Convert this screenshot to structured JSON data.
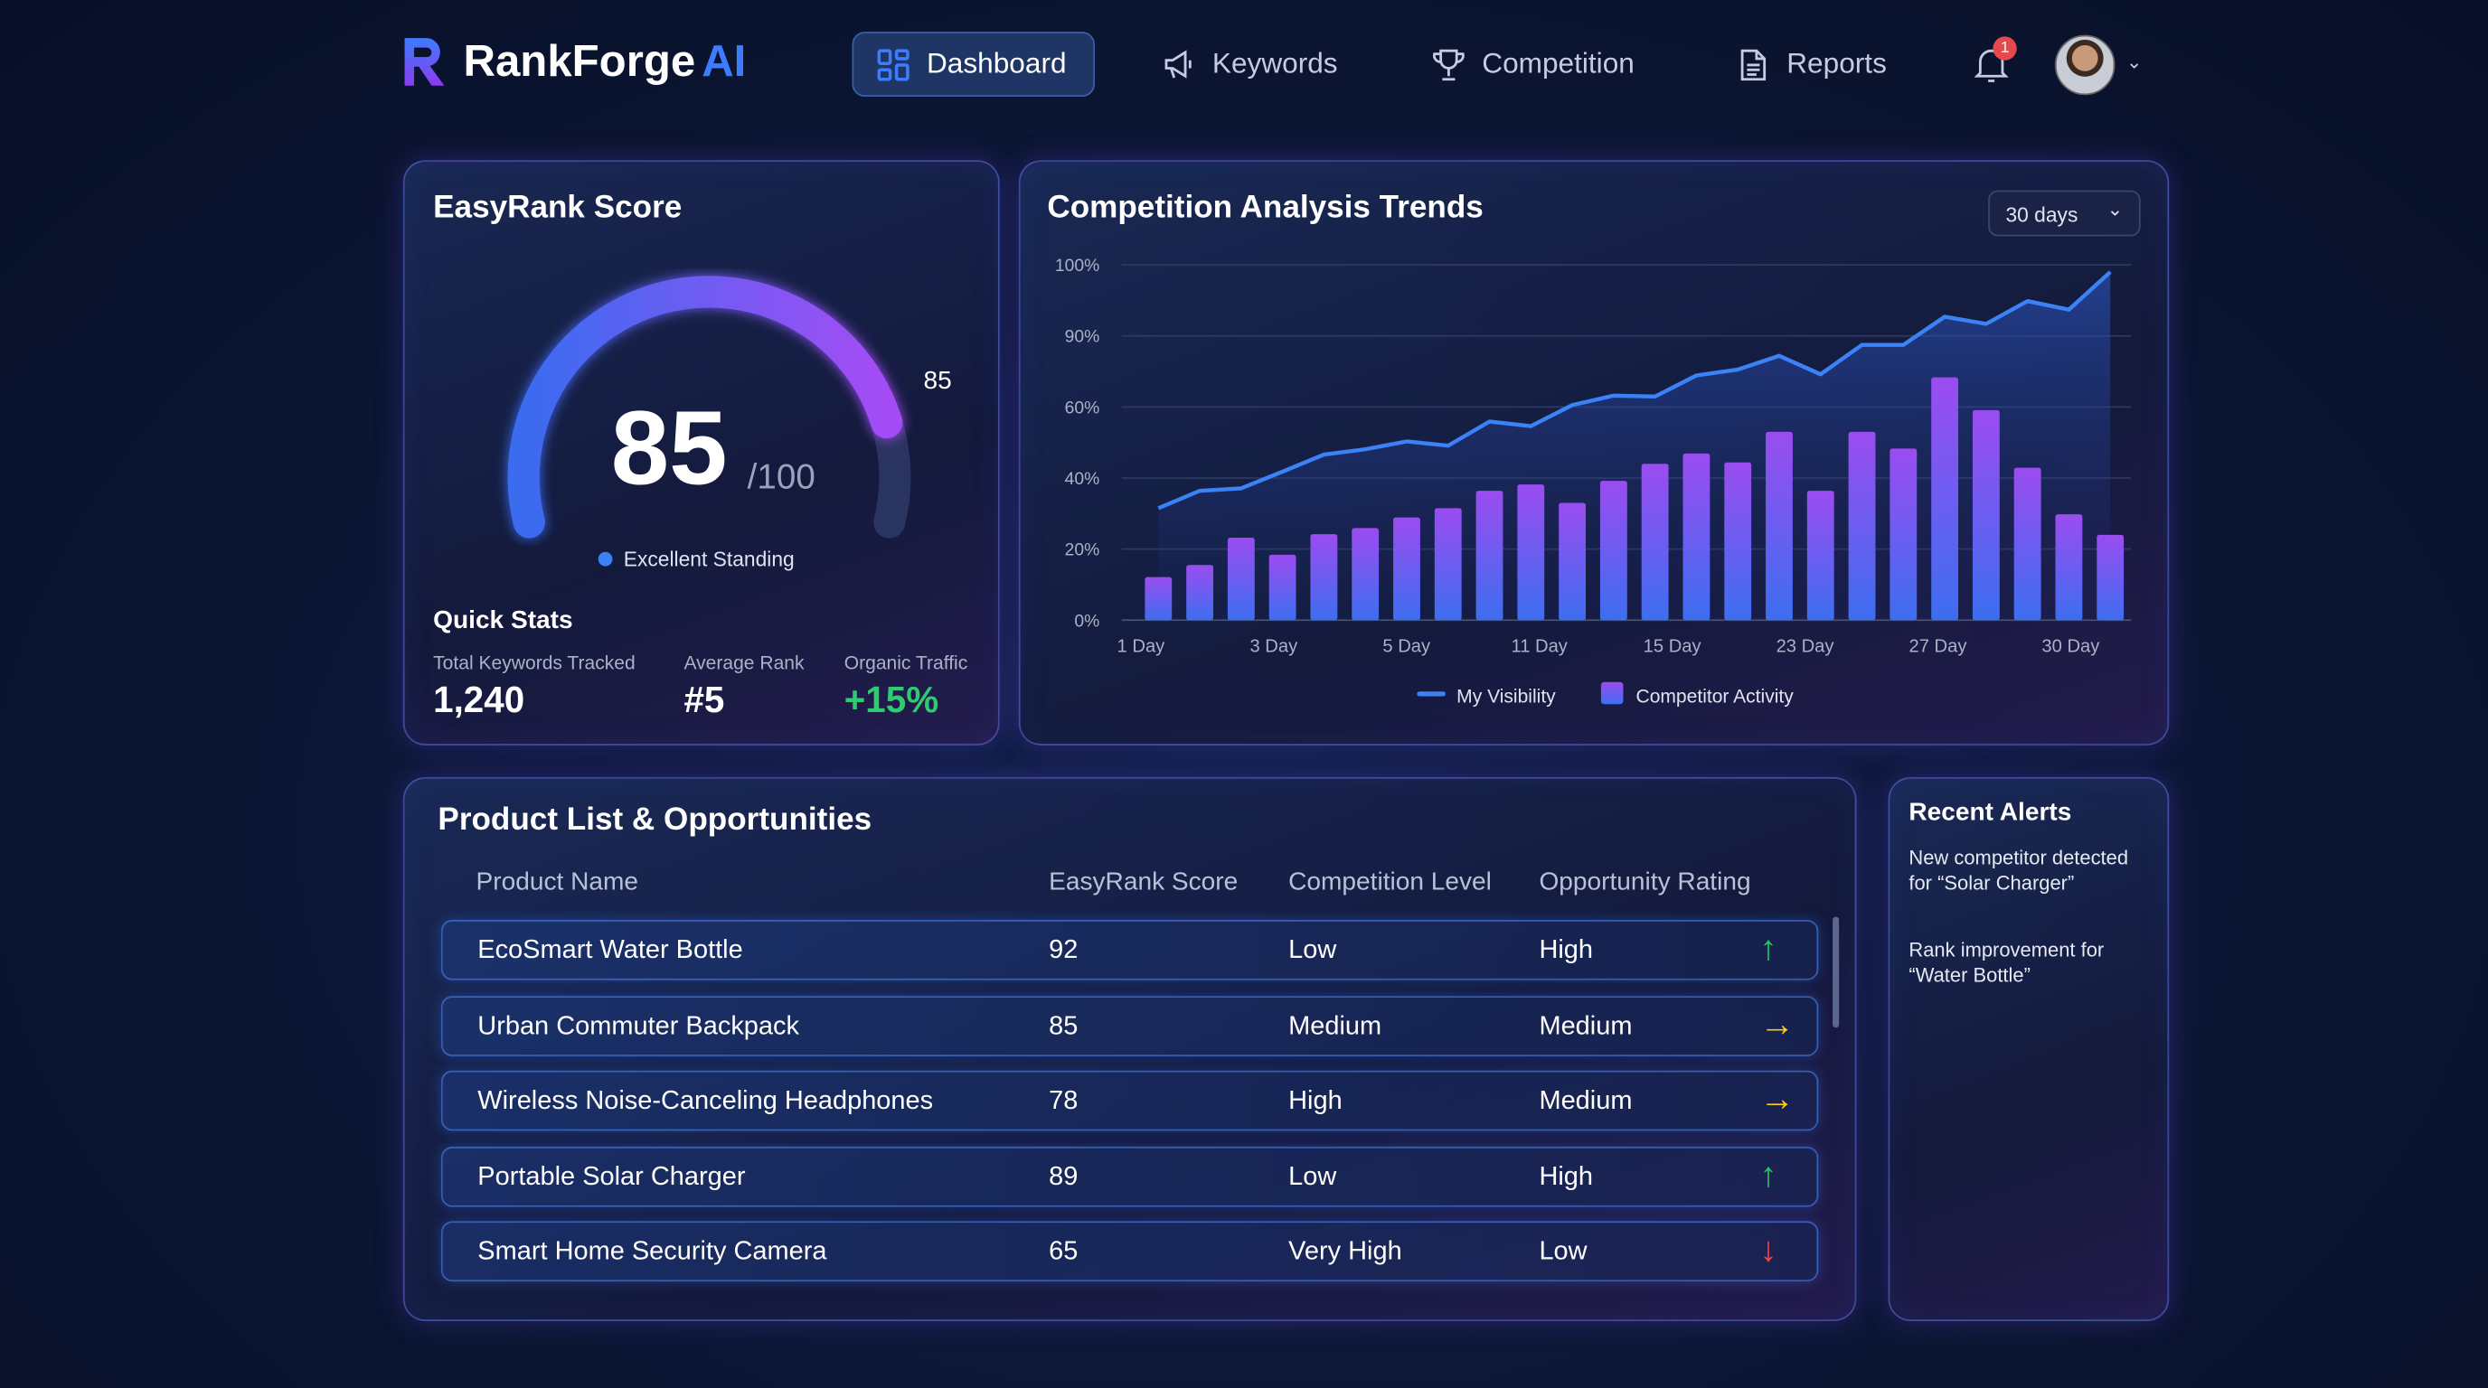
{
  "app": {
    "name": "RankForge",
    "name_suffix": "AI"
  },
  "nav": [
    {
      "label": "Dashboard",
      "icon": "grid-icon",
      "active": true
    },
    {
      "label": "Keywords",
      "icon": "megaphone-icon"
    },
    {
      "label": "Competition",
      "icon": "trophy-icon"
    },
    {
      "label": "Reports",
      "icon": "document-icon"
    }
  ],
  "notifications": {
    "count": "1"
  },
  "score_card": {
    "title": "EasyRank Score",
    "score": "85",
    "max": "/100",
    "gauge_label": "85",
    "gauge_value": 85,
    "status": "Excellent Standing",
    "quick_stats_title": "Quick Stats",
    "stats": [
      {
        "label": "Total Keywords Tracked",
        "value": "1,240"
      },
      {
        "label": "Average Rank",
        "value": "#5"
      },
      {
        "label": "Organic Traffic",
        "value": "+15%"
      }
    ]
  },
  "trends": {
    "title": "Competition Analysis Trends",
    "range": "30 days"
  },
  "chart_data": {
    "type": "bar+line",
    "title": "Competition Analysis Trends",
    "y_ticks": [
      "0%",
      "20%",
      "40%",
      "60%",
      "90%",
      "100%"
    ],
    "y_tick_values": [
      0,
      20,
      40,
      60,
      90,
      100
    ],
    "ylim": [
      0,
      100
    ],
    "x_tick_labels": [
      "1 Day",
      "3 Day",
      "5 Day",
      "11 Day",
      "15 Day",
      "23 Day",
      "27 Day",
      "30 Day"
    ],
    "grid": true,
    "legend_placement": "bottom",
    "series": [
      {
        "name": "My Visibility",
        "type": "line",
        "color": "#3b82f6",
        "values": [
          31.5,
          36.4,
          37.1,
          41.8,
          46.6,
          48.1,
          50.3,
          49.1,
          55.9,
          54.6,
          60.8,
          64.8,
          64.4,
          73.3,
          75.8,
          81.6,
          73.8,
          86.2,
          86.2,
          92.7,
          91.7,
          94.9,
          93.7,
          99
        ]
      },
      {
        "name": "Competitor Activity",
        "type": "bar",
        "color": "#9b4cf0",
        "values": [
          12.1,
          15.5,
          23.2,
          18.4,
          24.2,
          25.9,
          28.9,
          31.5,
          36.4,
          38.2,
          33,
          39.2,
          44,
          46.9,
          44.4,
          53,
          36.4,
          53,
          48.3,
          72.5,
          59.1,
          42.9,
          29.8,
          24
        ]
      }
    ]
  },
  "products": {
    "title": "Product List & Opportunities",
    "columns": [
      "Product Name",
      "EasyRank Score",
      "Competition Level",
      "Opportunity Rating"
    ],
    "rows": [
      {
        "name": "EcoSmart Water Bottle",
        "score": "92",
        "competition": "Low",
        "opportunity": "High",
        "trend": "up"
      },
      {
        "name": "Urban Commuter Backpack",
        "score": "85",
        "competition": "Medium",
        "opportunity": "Medium",
        "trend": "right"
      },
      {
        "name": "Wireless Noise-Canceling Headphones",
        "score": "78",
        "competition": "High",
        "opportunity": "Medium",
        "trend": "right"
      },
      {
        "name": "Portable Solar Charger",
        "score": "89",
        "competition": "Low",
        "opportunity": "High",
        "trend": "up"
      },
      {
        "name": "Smart Home Security Camera",
        "score": "65",
        "competition": "Very High",
        "opportunity": "Low",
        "trend": "down"
      }
    ]
  },
  "alerts": {
    "title": "Recent Alerts",
    "items": [
      "New competitor detected for “Solar Charger”",
      "Rank improvement for “Water Bottle”"
    ]
  },
  "colors": {
    "up": "#22c55e",
    "right": "#facc15",
    "down": "#ef4444",
    "accent": "#3d7cff",
    "positive": "#2ecc71"
  }
}
